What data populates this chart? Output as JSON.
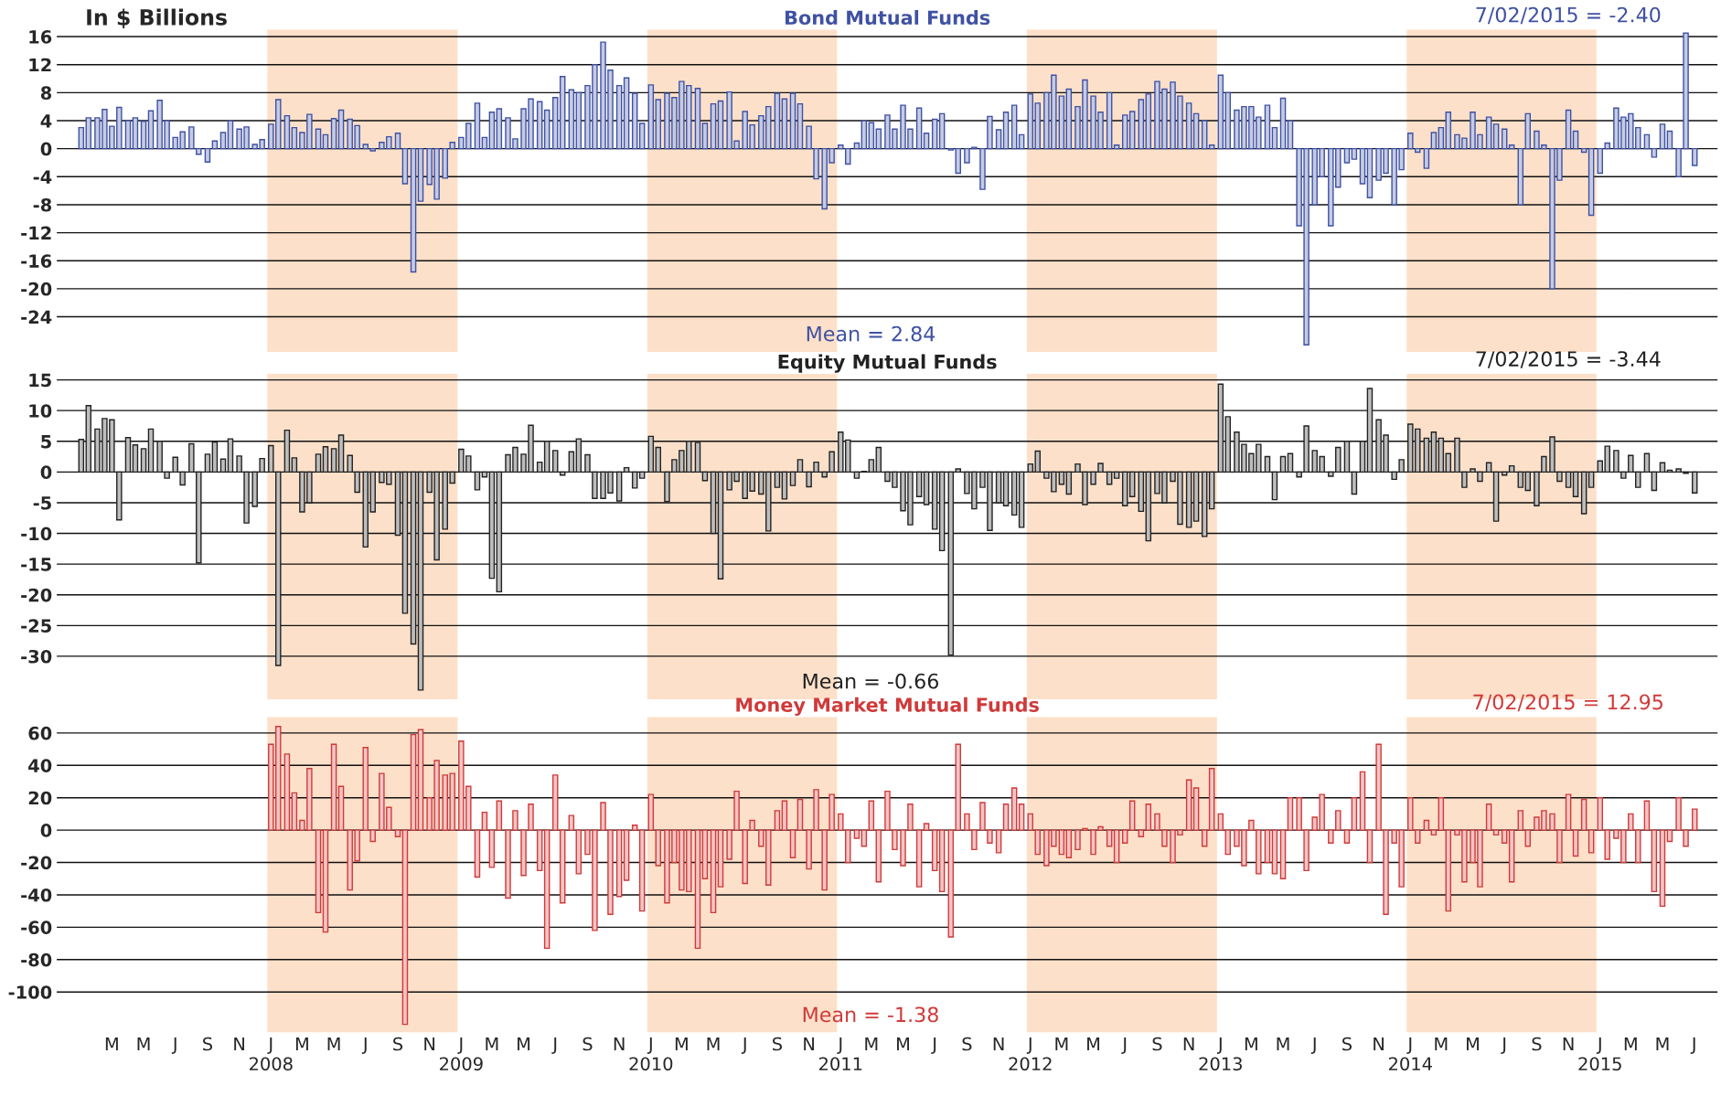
{
  "chart_data": [
    {
      "type": "bar",
      "title": "Bond Mutual Funds",
      "ylabel": "In $ Billions",
      "annotations": [
        "7/02/2015 = -2.40",
        "Mean = 2.84"
      ],
      "x": [
        "2007-01-01",
        "2007-01-15",
        "2007-02-01",
        "2007-02-15",
        "2007-03-01",
        "2007-03-15",
        "2007-04-01",
        "2007-04-15",
        "2007-05-01",
        "2007-05-15",
        "2007-06-01",
        "2007-06-15",
        "2007-07-01",
        "2007-07-15",
        "2007-08-01",
        "2007-08-15",
        "2007-09-01",
        "2007-09-15",
        "2007-10-01",
        "2007-10-15",
        "2007-11-01",
        "2007-11-15",
        "2007-12-01",
        "2007-12-15",
        "2008-01-01",
        "2008-01-15",
        "2008-02-01",
        "2008-02-15",
        "2008-03-01",
        "2008-03-15",
        "2008-04-01",
        "2008-04-15",
        "2008-05-01",
        "2008-05-15",
        "2008-06-01",
        "2008-06-15",
        "2008-07-01",
        "2008-07-15",
        "2008-08-01",
        "2008-08-15",
        "2008-09-01",
        "2008-09-15",
        "2008-10-01",
        "2008-10-15",
        "2008-11-01",
        "2008-11-15",
        "2008-12-01",
        "2008-12-15",
        "2009-01-01",
        "2009-01-15",
        "2009-02-01",
        "2009-02-15",
        "2009-03-01",
        "2009-03-15",
        "2009-04-01",
        "2009-04-15",
        "2009-05-01",
        "2009-05-15",
        "2009-06-01",
        "2009-06-15",
        "2009-07-01",
        "2009-07-15",
        "2009-08-01",
        "2009-08-15",
        "2009-09-01",
        "2009-09-15",
        "2009-10-01",
        "2009-10-15",
        "2009-11-01",
        "2009-11-15",
        "2009-12-01",
        "2009-12-15",
        "2010-01-01",
        "2010-01-15",
        "2010-02-01",
        "2010-02-15",
        "2010-03-01",
        "2010-03-15",
        "2010-04-01",
        "2010-04-15",
        "2010-05-01",
        "2010-05-15",
        "2010-06-01",
        "2010-06-15",
        "2010-07-01",
        "2010-07-15",
        "2010-08-01",
        "2010-08-15",
        "2010-09-01",
        "2010-09-15",
        "2010-10-01",
        "2010-10-15",
        "2010-11-01",
        "2010-11-15",
        "2010-12-01",
        "2010-12-15",
        "2011-01-01",
        "2011-01-15",
        "2011-02-01",
        "2011-02-15",
        "2011-03-01",
        "2011-03-15",
        "2011-04-01",
        "2011-04-15",
        "2011-05-01",
        "2011-05-15",
        "2011-06-01",
        "2011-06-15",
        "2011-07-01",
        "2011-07-15",
        "2011-08-01",
        "2011-08-15",
        "2011-09-01",
        "2011-09-15",
        "2011-10-01",
        "2011-10-15",
        "2011-11-01",
        "2011-11-15",
        "2011-12-01",
        "2011-12-15",
        "2012-01-01",
        "2012-01-15",
        "2012-02-01",
        "2012-02-15",
        "2012-03-01",
        "2012-03-15",
        "2012-04-01",
        "2012-04-15",
        "2012-05-01",
        "2012-05-15",
        "2012-06-01",
        "2012-06-15",
        "2012-07-01",
        "2012-07-15",
        "2012-08-01",
        "2012-08-15",
        "2012-09-01",
        "2012-09-15",
        "2012-10-01",
        "2012-10-15",
        "2012-11-01",
        "2012-11-15",
        "2012-12-01",
        "2012-12-15",
        "2013-01-01",
        "2013-01-15",
        "2013-02-01",
        "2013-02-15",
        "2013-03-01",
        "2013-03-15",
        "2013-04-01",
        "2013-04-15",
        "2013-05-01",
        "2013-05-15",
        "2013-06-01",
        "2013-06-15",
        "2013-07-01",
        "2013-07-15",
        "2013-08-01",
        "2013-08-15",
        "2013-09-01",
        "2013-09-15",
        "2013-10-01",
        "2013-10-15",
        "2013-11-01",
        "2013-11-15",
        "2013-12-01",
        "2013-12-15",
        "2014-01-01",
        "2014-01-15",
        "2014-02-01",
        "2014-02-15",
        "2014-03-01",
        "2014-03-15",
        "2014-04-01",
        "2014-04-15",
        "2014-05-01",
        "2014-05-15",
        "2014-06-01",
        "2014-06-15",
        "2014-07-01",
        "2014-07-15",
        "2014-08-01",
        "2014-08-15",
        "2014-09-01",
        "2014-09-15",
        "2014-10-01",
        "2014-10-15",
        "2014-11-01",
        "2014-11-15",
        "2014-12-01",
        "2014-12-15",
        "2015-01-01",
        "2015-01-15",
        "2015-02-01",
        "2015-02-15",
        "2015-03-01",
        "2015-03-15",
        "2015-04-01",
        "2015-04-15",
        "2015-05-01",
        "2015-05-15",
        "2015-06-01",
        "2015-06-15",
        "2015-07-02"
      ],
      "series": [
        {
          "color": "#3f51a3",
          "values": [
            3,
            4.4,
            4.4,
            5.6,
            3.2,
            5.9,
            4.0,
            4.4,
            3.9,
            5.4,
            6.9,
            4.0,
            1.6,
            2.4,
            3.1,
            -0.8,
            -1.9,
            1.1,
            2.3,
            4.0,
            2.8,
            3.1,
            0.6,
            1.3,
            3.5,
            7.0,
            4.7,
            3.0,
            2.3,
            4.9,
            2.8,
            2.0,
            4.3,
            5.5,
            4.2,
            3.3,
            0.6,
            -0.3,
            0.9,
            1.7,
            2.2,
            -5.0,
            -17.6,
            -7.5,
            -5.1,
            -7.2,
            -4.2,
            0.9,
            1.6,
            3.6,
            6.5,
            1.6,
            5.2,
            5.7,
            4.4,
            1.4,
            5.7,
            7.1,
            6.7,
            5.5,
            7.3,
            10.3,
            8.4,
            8.0,
            9.0,
            12.0,
            15.2,
            11.2,
            9.0,
            10.1,
            7.9,
            3.6,
            9.1,
            7.0,
            7.9,
            7.3,
            9.6,
            9.0,
            8.6,
            3.6,
            6.4,
            6.8,
            8.1,
            1.1,
            5.3,
            3.4,
            4.7,
            6.0,
            7.9,
            7.1,
            7.9,
            6.4,
            3.2,
            -4.3,
            -8.6,
            -2.0,
            0.5,
            -2.2,
            0.8,
            4.0,
            3.7,
            2.8,
            4.8,
            2.8,
            6.2,
            2.8,
            5.8,
            2.2,
            4.2,
            5.0,
            -0.2,
            -3.5,
            -2.0,
            0.2,
            -5.8,
            4.6,
            2.7,
            5.2,
            6.2,
            2.0,
            7.8,
            6.5,
            8.0,
            10.5,
            7.5,
            8.5,
            6.0,
            9.8,
            7.5,
            5.2,
            8.0,
            0.5,
            4.8,
            5.3,
            7.0,
            7.8,
            9.6,
            8.5,
            9.5,
            7.5,
            6.5,
            5.0,
            4.0,
            0.5,
            10.5,
            8.0,
            5.5,
            6.0,
            6.0,
            4.5,
            6.2,
            3.0,
            7.2,
            4.0,
            -11.0,
            -28.0,
            -8.0,
            -4.0,
            -11.0,
            -5.5,
            -2.0,
            -1.5,
            -5.0,
            -7.0,
            -4.5,
            -3.5,
            -8.0,
            -3.0,
            2.2,
            -0.5,
            -2.8,
            2.3,
            3.0,
            5.2,
            2.0,
            1.5,
            5.2,
            2.0,
            4.5,
            3.5,
            2.8,
            0.5,
            -8.0,
            5.0,
            2.5,
            0.5,
            -20.0,
            -4.5,
            5.5,
            2.5,
            -0.5,
            -9.5,
            -3.5,
            0.8,
            5.8,
            4.5,
            5.0,
            3.0,
            2.0,
            -1.2,
            3.5,
            2.5,
            -4.0,
            16.5,
            -2.4
          ]
        }
      ],
      "xlim": [
        "2006-11-15",
        "2015-08-15"
      ],
      "ylim": [
        -29,
        17
      ],
      "yticks": [
        16,
        12,
        8,
        4,
        0,
        -4,
        -8,
        -12,
        -16,
        -20,
        -24
      ],
      "grid": "y",
      "tick_labels": "y",
      "bands": [
        {
          "axis": "x",
          "from": "2007-12-25",
          "to": "2008-12-25",
          "color": "#fde0c9"
        },
        {
          "axis": "x",
          "from": "2009-12-25",
          "to": "2010-12-25",
          "color": "#fde0c9"
        },
        {
          "axis": "x",
          "from": "2011-12-25",
          "to": "2012-12-25",
          "color": "#fde0c9"
        },
        {
          "axis": "x",
          "from": "2013-12-25",
          "to": "2014-12-25",
          "color": "#fde0c9"
        }
      ]
    },
    {
      "type": "bar",
      "title": "Equity Mutual Funds",
      "annotations": [
        "7/02/2015 = -3.44",
        "Mean = -0.66"
      ],
      "x": [
        "2007-01-01",
        "2007-01-15",
        "2007-02-01",
        "2007-02-15",
        "2007-03-01",
        "2007-03-15",
        "2007-04-01",
        "2007-04-15",
        "2007-05-01",
        "2007-05-15",
        "2007-06-01",
        "2007-06-15",
        "2007-07-01",
        "2007-07-15",
        "2007-08-01",
        "2007-08-15",
        "2007-09-01",
        "2007-09-15",
        "2007-10-01",
        "2007-10-15",
        "2007-11-01",
        "2007-11-15",
        "2007-12-01",
        "2007-12-15",
        "2008-01-01",
        "2008-01-15",
        "2008-02-01",
        "2008-02-15",
        "2008-03-01",
        "2008-03-15",
        "2008-04-01",
        "2008-04-15",
        "2008-05-01",
        "2008-05-15",
        "2008-06-01",
        "2008-06-15",
        "2008-07-01",
        "2008-07-15",
        "2008-08-01",
        "2008-08-15",
        "2008-09-01",
        "2008-09-15",
        "2008-10-01",
        "2008-10-15",
        "2008-11-01",
        "2008-11-15",
        "2008-12-01",
        "2008-12-15",
        "2009-01-01",
        "2009-01-15",
        "2009-02-01",
        "2009-02-15",
        "2009-03-01",
        "2009-03-15",
        "2009-04-01",
        "2009-04-15",
        "2009-05-01",
        "2009-05-15",
        "2009-06-01",
        "2009-06-15",
        "2009-07-01",
        "2009-07-15",
        "2009-08-01",
        "2009-08-15",
        "2009-09-01",
        "2009-09-15",
        "2009-10-01",
        "2009-10-15",
        "2009-11-01",
        "2009-11-15",
        "2009-12-01",
        "2009-12-15",
        "2010-01-01",
        "2010-01-15",
        "2010-02-01",
        "2010-02-15",
        "2010-03-01",
        "2010-03-15",
        "2010-04-01",
        "2010-04-15",
        "2010-05-01",
        "2010-05-15",
        "2010-06-01",
        "2010-06-15",
        "2010-07-01",
        "2010-07-15",
        "2010-08-01",
        "2010-08-15",
        "2010-09-01",
        "2010-09-15",
        "2010-10-01",
        "2010-10-15",
        "2010-11-01",
        "2010-11-15",
        "2010-12-01",
        "2010-12-15",
        "2011-01-01",
        "2011-01-15",
        "2011-02-01",
        "2011-02-15",
        "2011-03-01",
        "2011-03-15",
        "2011-04-01",
        "2011-04-15",
        "2011-05-01",
        "2011-05-15",
        "2011-06-01",
        "2011-06-15",
        "2011-07-01",
        "2011-07-15",
        "2011-08-01",
        "2011-08-15",
        "2011-09-01",
        "2011-09-15",
        "2011-10-01",
        "2011-10-15",
        "2011-11-01",
        "2011-11-15",
        "2011-12-01",
        "2011-12-15",
        "2012-01-01",
        "2012-01-15",
        "2012-02-01",
        "2012-02-15",
        "2012-03-01",
        "2012-03-15",
        "2012-04-01",
        "2012-04-15",
        "2012-05-01",
        "2012-05-15",
        "2012-06-01",
        "2012-06-15",
        "2012-07-01",
        "2012-07-15",
        "2012-08-01",
        "2012-08-15",
        "2012-09-01",
        "2012-09-15",
        "2012-10-01",
        "2012-10-15",
        "2012-11-01",
        "2012-11-15",
        "2012-12-01",
        "2012-12-15",
        "2013-01-01",
        "2013-01-15",
        "2013-02-01",
        "2013-02-15",
        "2013-03-01",
        "2013-03-15",
        "2013-04-01",
        "2013-04-15",
        "2013-05-01",
        "2013-05-15",
        "2013-06-01",
        "2013-06-15",
        "2013-07-01",
        "2013-07-15",
        "2013-08-01",
        "2013-08-15",
        "2013-09-01",
        "2013-09-15",
        "2013-10-01",
        "2013-10-15",
        "2013-11-01",
        "2013-11-15",
        "2013-12-01",
        "2013-12-15",
        "2014-01-01",
        "2014-01-15",
        "2014-02-01",
        "2014-02-15",
        "2014-03-01",
        "2014-03-15",
        "2014-04-01",
        "2014-04-15",
        "2014-05-01",
        "2014-05-15",
        "2014-06-01",
        "2014-06-15",
        "2014-07-01",
        "2014-07-15",
        "2014-08-01",
        "2014-08-15",
        "2014-09-01",
        "2014-09-15",
        "2014-10-01",
        "2014-10-15",
        "2014-11-01",
        "2014-11-15",
        "2014-12-01",
        "2014-12-15",
        "2015-01-01",
        "2015-01-15",
        "2015-02-01",
        "2015-02-15",
        "2015-03-01",
        "2015-03-15",
        "2015-04-01",
        "2015-04-15",
        "2015-05-01",
        "2015-05-15",
        "2015-06-01",
        "2015-06-15",
        "2015-07-02"
      ],
      "series": [
        {
          "color": "#222222",
          "values": [
            5.3,
            10.8,
            7.0,
            8.7,
            8.5,
            -7.8,
            5.6,
            4.4,
            3.8,
            7.0,
            5.0,
            -1.0,
            2.4,
            -2.1,
            4.6,
            -14.8,
            2.9,
            4.9,
            2.1,
            5.4,
            2.6,
            -8.3,
            -5.6,
            2.2,
            4.3,
            -31.5,
            6.8,
            2.3,
            -6.5,
            -5.0,
            2.9,
            4.1,
            3.8,
            6.0,
            2.7,
            -3.3,
            -12.2,
            -6.5,
            -1.7,
            -2.0,
            -10.3,
            -23.0,
            -28.0,
            -35.5,
            -3.3,
            -14.3,
            -9.3,
            -1.8,
            3.7,
            2.6,
            -2.9,
            -0.8,
            -17.3,
            -19.5,
            2.8,
            4.0,
            2.9,
            7.6,
            1.6,
            5.0,
            3.5,
            -0.5,
            3.3,
            5.4,
            2.8,
            -4.3,
            -4.3,
            -3.4,
            -4.7,
            0.7,
            -2.6,
            -1.0,
            5.8,
            4.0,
            -4.8,
            2.0,
            3.5,
            5.0,
            4.8,
            -1.4,
            -10.0,
            -17.4,
            -2.9,
            -1.5,
            -4.3,
            -3.1,
            -3.6,
            -9.6,
            -2.5,
            -4.4,
            -2.2,
            2.0,
            -2.4,
            1.6,
            -0.8,
            3.3,
            6.5,
            5.2,
            -1.0,
            0.1,
            2.0,
            4.0,
            -1.5,
            -2.5,
            -6.3,
            -8.6,
            -4.0,
            -5.3,
            -9.3,
            -12.8,
            -29.8,
            0.5,
            -3.5,
            -6.0,
            -2.5,
            -9.5,
            -5.0,
            -5.5,
            -7.0,
            -9.0,
            1.3,
            3.4,
            -1.0,
            -3.2,
            -2.0,
            -3.6,
            1.3,
            -5.3,
            -2.0,
            1.4,
            -2.0,
            -1.0,
            -5.5,
            -4.0,
            -6.4,
            -11.2,
            -3.5,
            -5.0,
            -1.5,
            -8.5,
            -9.0,
            -8.0,
            -10.5,
            -6.0,
            14.3,
            9.0,
            6.5,
            4.5,
            3.0,
            4.5,
            2.5,
            -4.5,
            2.5,
            3.0,
            -0.8,
            7.5,
            3.5,
            2.5,
            -0.7,
            4.0,
            5.0,
            -3.6,
            5.0,
            13.6,
            8.5,
            6.0,
            -1.2,
            2.0,
            7.8,
            7.0,
            5.5,
            6.5,
            5.5,
            3.0,
            5.5,
            -2.5,
            0.5,
            -1.5,
            1.5,
            -8.0,
            -0.5,
            1.0,
            -2.5,
            -3.0,
            -5.5,
            2.5,
            5.7,
            -1.5,
            -2.5,
            -4.0,
            -6.8,
            -2.5,
            1.8,
            4.2,
            3.5,
            -1.0,
            2.7,
            -2.5,
            3.0,
            -3.0,
            1.5,
            0.3,
            0.5,
            -0.2,
            -3.4
          ]
        }
      ],
      "xlim": [
        "2006-11-15",
        "2015-08-15"
      ],
      "ylim": [
        -37,
        16
      ],
      "yticks": [
        15,
        10,
        5,
        0,
        -5,
        -10,
        -15,
        -20,
        -25,
        -30
      ],
      "grid": "y",
      "tick_labels": "y",
      "bands": [
        {
          "axis": "x",
          "from": "2007-12-25",
          "to": "2008-12-25",
          "color": "#fde0c9"
        },
        {
          "axis": "x",
          "from": "2009-12-25",
          "to": "2010-12-25",
          "color": "#fde0c9"
        },
        {
          "axis": "x",
          "from": "2011-12-25",
          "to": "2012-12-25",
          "color": "#fde0c9"
        },
        {
          "axis": "x",
          "from": "2013-12-25",
          "to": "2014-12-25",
          "color": "#fde0c9"
        }
      ]
    },
    {
      "type": "bar",
      "title": "Money Market Mutual Funds",
      "annotations": [
        "7/02/2015 = 12.95",
        "Mean = -1.38"
      ],
      "x": [
        "2008-01-01",
        "2008-01-15",
        "2008-02-01",
        "2008-02-15",
        "2008-03-01",
        "2008-03-15",
        "2008-04-01",
        "2008-04-15",
        "2008-05-01",
        "2008-05-15",
        "2008-06-01",
        "2008-06-15",
        "2008-07-01",
        "2008-07-15",
        "2008-08-01",
        "2008-08-15",
        "2008-09-01",
        "2008-09-15",
        "2008-10-01",
        "2008-10-15",
        "2008-11-01",
        "2008-11-15",
        "2008-12-01",
        "2008-12-15",
        "2009-01-01",
        "2009-01-15",
        "2009-02-01",
        "2009-02-15",
        "2009-03-01",
        "2009-03-15",
        "2009-04-01",
        "2009-04-15",
        "2009-05-01",
        "2009-05-15",
        "2009-06-01",
        "2009-06-15",
        "2009-07-01",
        "2009-07-15",
        "2009-08-01",
        "2009-08-15",
        "2009-09-01",
        "2009-09-15",
        "2009-10-01",
        "2009-10-15",
        "2009-11-01",
        "2009-11-15",
        "2009-12-01",
        "2009-12-15",
        "2010-01-01",
        "2010-01-15",
        "2010-02-01",
        "2010-02-15",
        "2010-03-01",
        "2010-03-15",
        "2010-04-01",
        "2010-04-15",
        "2010-05-01",
        "2010-05-15",
        "2010-06-01",
        "2010-06-15",
        "2010-07-01",
        "2010-07-15",
        "2010-08-01",
        "2010-08-15",
        "2010-09-01",
        "2010-09-15",
        "2010-10-01",
        "2010-10-15",
        "2010-11-01",
        "2010-11-15",
        "2010-12-01",
        "2010-12-15",
        "2011-01-01",
        "2011-01-15",
        "2011-02-01",
        "2011-02-15",
        "2011-03-01",
        "2011-03-15",
        "2011-04-01",
        "2011-04-15",
        "2011-05-01",
        "2011-05-15",
        "2011-06-01",
        "2011-06-15",
        "2011-07-01",
        "2011-07-15",
        "2011-08-01",
        "2011-08-15",
        "2011-09-01",
        "2011-09-15",
        "2011-10-01",
        "2011-10-15",
        "2011-11-01",
        "2011-11-15",
        "2011-12-01",
        "2011-12-15",
        "2012-01-01",
        "2012-01-15",
        "2012-02-01",
        "2012-02-15",
        "2012-03-01",
        "2012-03-15",
        "2012-04-01",
        "2012-04-15",
        "2012-05-01",
        "2012-05-15",
        "2012-06-01",
        "2012-06-15",
        "2012-07-01",
        "2012-07-15",
        "2012-08-01",
        "2012-08-15",
        "2012-09-01",
        "2012-09-15",
        "2012-10-01",
        "2012-10-15",
        "2012-11-01",
        "2012-11-15",
        "2012-12-01",
        "2012-12-15",
        "2013-01-01",
        "2013-01-15",
        "2013-02-01",
        "2013-02-15",
        "2013-03-01",
        "2013-03-15",
        "2013-04-01",
        "2013-04-15",
        "2013-05-01",
        "2013-05-15",
        "2013-06-01",
        "2013-06-15",
        "2013-07-01",
        "2013-07-15",
        "2013-08-01",
        "2013-08-15",
        "2013-09-01",
        "2013-09-15",
        "2013-10-01",
        "2013-10-15",
        "2013-11-01",
        "2013-11-15",
        "2013-12-01",
        "2013-12-15",
        "2014-01-01",
        "2014-01-15",
        "2014-02-01",
        "2014-02-15",
        "2014-03-01",
        "2014-03-15",
        "2014-04-01",
        "2014-04-15",
        "2014-05-01",
        "2014-05-15",
        "2014-06-01",
        "2014-06-15",
        "2014-07-01",
        "2014-07-15",
        "2014-08-01",
        "2014-08-15",
        "2014-09-01",
        "2014-09-15",
        "2014-10-01",
        "2014-10-15",
        "2014-11-01",
        "2014-11-15",
        "2014-12-01",
        "2014-12-15",
        "2015-01-01",
        "2015-01-15",
        "2015-02-01",
        "2015-02-15",
        "2015-03-01",
        "2015-03-15",
        "2015-04-01",
        "2015-04-15",
        "2015-05-01",
        "2015-05-15",
        "2015-06-01",
        "2015-06-15",
        "2015-07-02"
      ],
      "series": [
        {
          "color": "#d03a3a",
          "values": [
            53,
            64,
            47,
            23,
            6,
            38,
            -51,
            -63,
            53,
            27,
            -37,
            -19,
            51,
            -7,
            35,
            14,
            -4,
            -120,
            59,
            62,
            20,
            43,
            34,
            35,
            55,
            27,
            -29,
            11,
            -23,
            18,
            -42,
            12,
            -28,
            16,
            -25,
            -73,
            34,
            -45,
            9,
            -27,
            -15,
            -62,
            17,
            -52,
            -41,
            -31,
            3,
            -50,
            22,
            -22,
            -45,
            -20,
            -37,
            -38,
            -73,
            -30,
            -51,
            -35,
            -18,
            24,
            -33,
            6,
            -10,
            -34,
            12,
            18,
            -17,
            19,
            -24,
            25,
            -37,
            22,
            10,
            -20,
            -5,
            -10,
            18,
            -32,
            24,
            -12,
            -22,
            16,
            -35,
            4,
            -25,
            -38,
            -66,
            53,
            10,
            -12,
            17,
            -8,
            -14,
            16,
            26,
            16,
            10,
            -15,
            -22,
            -10,
            -15,
            -17,
            -12,
            1,
            -15,
            2,
            -10,
            -20,
            -8,
            18,
            -4,
            16,
            10,
            -10,
            -20,
            -3,
            31,
            26,
            -10,
            38,
            10,
            -15,
            -10,
            -22,
            6,
            -27,
            -20,
            -27,
            -30,
            20,
            20,
            -25,
            8,
            22,
            -8,
            12,
            -8,
            20,
            36,
            -20,
            53,
            -52,
            -8,
            -35,
            20,
            -8,
            6,
            -3,
            20,
            -50,
            -3,
            -32,
            -20,
            -35,
            16,
            -3,
            -8,
            -32,
            12,
            -10,
            8,
            12,
            10,
            -20,
            22,
            -16,
            19,
            -14,
            20,
            -18,
            -5,
            -20,
            10,
            -20,
            18,
            -38,
            -47,
            -7,
            20,
            -10,
            13
          ]
        }
      ],
      "xlim": [
        "2006-11-15",
        "2015-08-15"
      ],
      "ylim": [
        -125,
        70
      ],
      "yticks": [
        60,
        40,
        20,
        0,
        -20,
        -40,
        -60,
        -80,
        -100
      ],
      "xticks": [
        {
          "value": "2007-03-01",
          "label": "M"
        },
        {
          "value": "2007-05-01",
          "label": "M"
        },
        {
          "value": "2007-07-01",
          "label": "J"
        },
        {
          "value": "2007-09-01",
          "label": "S"
        },
        {
          "value": "2007-11-01",
          "label": "N"
        },
        {
          "value": "2008-01-01",
          "label": "J\n2008"
        },
        {
          "value": "2008-03-01",
          "label": "M"
        },
        {
          "value": "2008-05-01",
          "label": "M"
        },
        {
          "value": "2008-07-01",
          "label": "J"
        },
        {
          "value": "2008-09-01",
          "label": "S"
        },
        {
          "value": "2008-11-01",
          "label": "N"
        },
        {
          "value": "2009-01-01",
          "label": "J\n2009"
        },
        {
          "value": "2009-03-01",
          "label": "M"
        },
        {
          "value": "2009-05-01",
          "label": "M"
        },
        {
          "value": "2009-07-01",
          "label": "J"
        },
        {
          "value": "2009-09-01",
          "label": "S"
        },
        {
          "value": "2009-11-01",
          "label": "N"
        },
        {
          "value": "2010-01-01",
          "label": "J\n2010"
        },
        {
          "value": "2010-03-01",
          "label": "M"
        },
        {
          "value": "2010-05-01",
          "label": "M"
        },
        {
          "value": "2010-07-01",
          "label": "J"
        },
        {
          "value": "2010-09-01",
          "label": "S"
        },
        {
          "value": "2010-11-01",
          "label": "N"
        },
        {
          "value": "2011-01-01",
          "label": "J\n2011"
        },
        {
          "value": "2011-03-01",
          "label": "M"
        },
        {
          "value": "2011-05-01",
          "label": "M"
        },
        {
          "value": "2011-07-01",
          "label": "J"
        },
        {
          "value": "2011-09-01",
          "label": "S"
        },
        {
          "value": "2011-11-01",
          "label": "N"
        },
        {
          "value": "2012-01-01",
          "label": "J\n2012"
        },
        {
          "value": "2012-03-01",
          "label": "M"
        },
        {
          "value": "2012-05-01",
          "label": "M"
        },
        {
          "value": "2012-07-01",
          "label": "J"
        },
        {
          "value": "2012-09-01",
          "label": "S"
        },
        {
          "value": "2012-11-01",
          "label": "N"
        },
        {
          "value": "2013-01-01",
          "label": "J\n2013"
        },
        {
          "value": "2013-03-01",
          "label": "M"
        },
        {
          "value": "2013-05-01",
          "label": "M"
        },
        {
          "value": "2013-07-01",
          "label": "J"
        },
        {
          "value": "2013-09-01",
          "label": "S"
        },
        {
          "value": "2013-11-01",
          "label": "N"
        },
        {
          "value": "2014-01-01",
          "label": "J\n2014"
        },
        {
          "value": "2014-03-01",
          "label": "M"
        },
        {
          "value": "2014-05-01",
          "label": "M"
        },
        {
          "value": "2014-07-01",
          "label": "J"
        },
        {
          "value": "2014-09-01",
          "label": "S"
        },
        {
          "value": "2014-11-01",
          "label": "N"
        },
        {
          "value": "2015-01-01",
          "label": "J\n2015"
        },
        {
          "value": "2015-03-01",
          "label": "M"
        },
        {
          "value": "2015-05-01",
          "label": "M"
        },
        {
          "value": "2015-07-01",
          "label": "J"
        }
      ],
      "grid": "y",
      "bands": [
        {
          "axis": "x",
          "from": "2007-12-25",
          "to": "2008-12-25",
          "color": "#fde0c9"
        },
        {
          "axis": "x",
          "from": "2009-12-25",
          "to": "2010-12-25",
          "color": "#fde0c9"
        },
        {
          "axis": "x",
          "from": "2011-12-25",
          "to": "2012-12-25",
          "color": "#fde0c9"
        },
        {
          "axis": "x",
          "from": "2013-12-25",
          "to": "2014-12-25",
          "color": "#fde0c9"
        }
      ]
    }
  ]
}
